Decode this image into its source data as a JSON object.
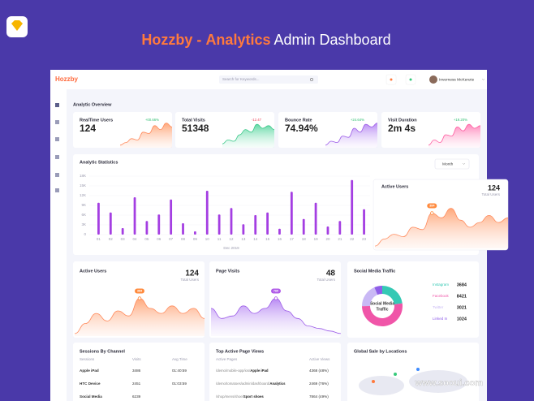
{
  "header": {
    "brand": "Hozzby",
    "separator": "-",
    "highlight": "Analytics",
    "title": "Admin Dashboard"
  },
  "app": {
    "logo": "Hozzby",
    "search_placeholder": "Search for Keywords...",
    "user": "Inverness McKenzie"
  },
  "overview": {
    "title": "Analytic Overview",
    "cards": [
      {
        "label": "RealTime Users",
        "value": "124",
        "change": "+00.66%"
      },
      {
        "label": "Total Visits",
        "value": "51348",
        "change": "-12.47"
      },
      {
        "label": "Bounce Rate",
        "value": "74.94%",
        "change": "+24.64%"
      },
      {
        "label": "Visit Duration",
        "value": "2m 4s",
        "change": "+19.20%"
      }
    ]
  },
  "analytic_statistics": {
    "type": "bar",
    "title": "Analytic Statistics",
    "dropdown": "Month",
    "x_label": "Dec 2019",
    "categories": [
      "01",
      "02",
      "03",
      "04",
      "05",
      "06",
      "07",
      "08",
      "09",
      "10",
      "11",
      "12",
      "13",
      "14",
      "15",
      "16",
      "17",
      "18",
      "19",
      "20",
      "21",
      "22",
      "23"
    ],
    "values": [
      9800,
      6800,
      2000,
      11500,
      4200,
      6200,
      10800,
      3500,
      1000,
      13500,
      6200,
      8200,
      3200,
      6000,
      6800,
      1800,
      13200,
      4800,
      9800,
      2500,
      4200,
      16800,
      7800
    ],
    "color": "#a43ee2",
    "ylim": [
      0,
      18000
    ],
    "yticks": [
      0,
      {
        "value": 3000,
        "label": "3K"
      },
      {
        "value": 6000,
        "label": "6K"
      },
      {
        "value": 9000,
        "label": "9K"
      },
      {
        "value": 12000,
        "label": "12K"
      },
      {
        "value": 15000,
        "label": "15K"
      },
      {
        "value": 18000,
        "label": "18K"
      }
    ]
  },
  "floating_card": {
    "title": "Active Users",
    "value": "124",
    "caption": "Total Users",
    "badge": "384"
  },
  "active_users": {
    "title": "Active Users",
    "value": "124",
    "caption": "Total Users",
    "badge": "384"
  },
  "page_visits": {
    "title": "Page Visits",
    "value": "48",
    "caption": "Total Users",
    "badge": "760"
  },
  "social_media": {
    "type": "pie",
    "title": "Social Media Traffic",
    "center_label": [
      "Social Media",
      "Traffic"
    ],
    "categories": [
      "Instagram",
      "Facebook",
      "Twitter",
      "Linked In"
    ],
    "values": [
      3684,
      8421,
      3021,
      1024
    ],
    "colors": [
      "#35c9b4",
      "#f055a8",
      "#c9b8f5",
      "#8f5ee8"
    ]
  },
  "sessions": {
    "title": "Sessions By Channel",
    "columns": [
      "Sessions",
      "Visits",
      "Avg.Time"
    ],
    "rows": [
      [
        "Apple iPad",
        "3486",
        "01:40:59"
      ],
      [
        "HTC Device",
        "2451",
        "01:03:59"
      ],
      [
        "Social Media",
        "6239"
      ]
    ]
  },
  "page_views": {
    "title": "Top Active Page Views",
    "columns": [
      "Active Pages",
      "Active Views"
    ],
    "rows": [
      [
        "/demo/mobile-app/ios/",
        "Apple iPad",
        "4368 (48%)"
      ],
      [
        "/demo/tomatoes/admin/dashboard/",
        "Analytics",
        "2469 (76%)"
      ],
      [
        "/shop/mens/shoe/",
        "Sport shoes",
        "7864 (49%)"
      ]
    ]
  },
  "locations": {
    "title": "Global Sale by Locations"
  },
  "watermark": "www.sooui.com"
}
